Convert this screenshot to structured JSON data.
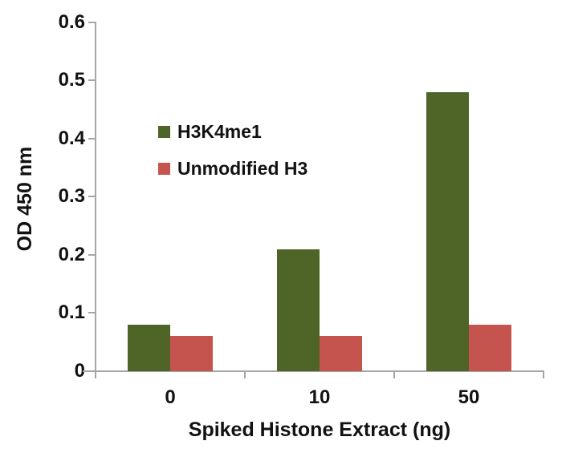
{
  "chart_data": {
    "type": "bar",
    "categories": [
      "0",
      "10",
      "50"
    ],
    "series": [
      {
        "name": "H3K4me1",
        "color": "#4e6527",
        "values": [
          0.08,
          0.21,
          0.48
        ]
      },
      {
        "name": "Unmodified H3",
        "color": "#c5544e",
        "values": [
          0.06,
          0.06,
          0.08
        ]
      }
    ],
    "xlabel": "Spiked Histone Extract (ng)",
    "ylabel": "OD 450 nm",
    "ylim": [
      0,
      0.6
    ],
    "ytick_step": 0.1,
    "ytick_labels": [
      "0.6",
      "0.5",
      "0.4",
      "0.3",
      "0.2",
      "0.1",
      "0"
    ],
    "grid": false,
    "legend_position": "inside-upper-left",
    "axis_color": "#a6a6a6",
    "text_color": "#121212",
    "background_color": "#ffffff"
  }
}
